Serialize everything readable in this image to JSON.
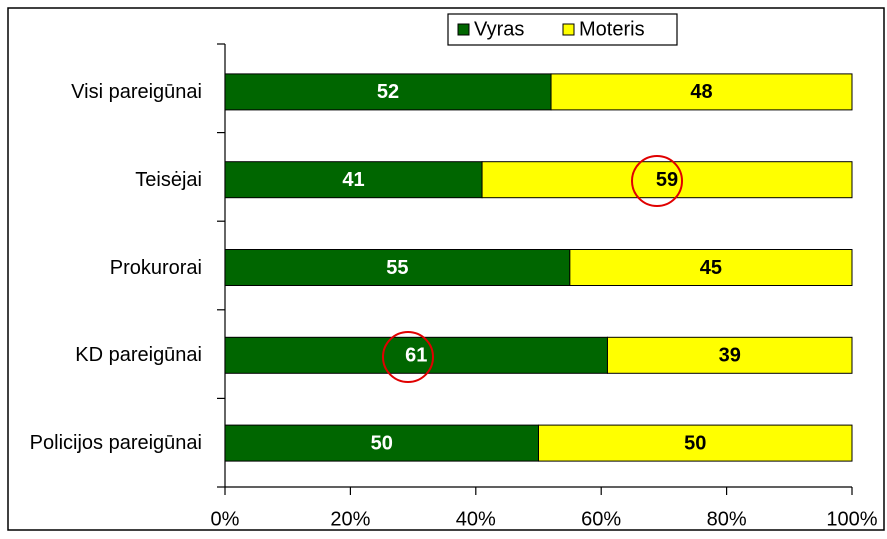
{
  "chart_data": {
    "type": "bar",
    "orientation": "horizontal",
    "stacked": true,
    "categories": [
      "Visi pareigūnai",
      "Teisėjai",
      "Prokurorai",
      "KD pareigūnai",
      "Policijos pareigūnai"
    ],
    "series": [
      {
        "name": "Vyras",
        "color": "#006600",
        "label_color": "#ffffff",
        "values": [
          52,
          41,
          55,
          61,
          50
        ]
      },
      {
        "name": "Moteris",
        "color": "#ffff00",
        "label_color": "#000000",
        "values": [
          48,
          59,
          45,
          39,
          50
        ]
      }
    ],
    "xlim": [
      0,
      100
    ],
    "xticks": [
      {
        "value": 0,
        "label": "0%"
      },
      {
        "value": 20,
        "label": "20%"
      },
      {
        "value": 40,
        "label": "40%"
      },
      {
        "value": 60,
        "label": "60%"
      },
      {
        "value": 80,
        "label": "80%"
      },
      {
        "value": 100,
        "label": "100%"
      }
    ],
    "legend": "top"
  }
}
